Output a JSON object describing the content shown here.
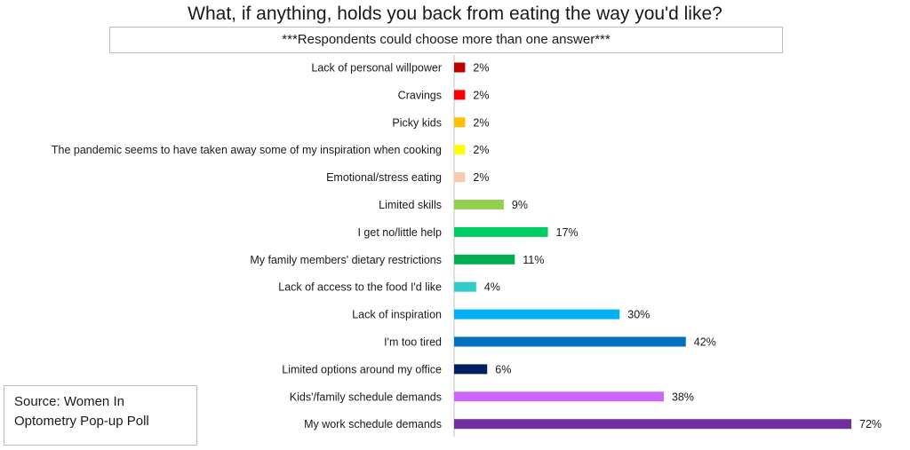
{
  "chart_data": {
    "type": "bar",
    "orientation": "horizontal",
    "title": "What, if anything, holds you back from eating the way you'd like?",
    "subtitle": "***Respondents could choose more than one answer***",
    "source": "Source: Women In\nOptometry Pop-up Poll",
    "categories": [
      "Lack of personal willpower",
      "Cravings",
      "Picky kids",
      "The pandemic seems to have taken away some of my inspiration when cooking",
      "Emotional/stress eating",
      "Limited skills",
      "I get no/little help",
      "My family members' dietary restrictions",
      "Lack of access to the food I'd like",
      "Lack of inspiration",
      "I'm too tired",
      "Limited options around my office",
      "Kids'/family schedule demands",
      "My work schedule demands"
    ],
    "values": [
      2,
      2,
      2,
      2,
      2,
      9,
      17,
      11,
      4,
      30,
      42,
      6,
      38,
      72
    ],
    "value_labels": [
      "2%",
      "2%",
      "2%",
      "2%",
      "2%",
      "9%",
      "17%",
      "11%",
      "4%",
      "30%",
      "42%",
      "6%",
      "38%",
      "72%"
    ],
    "colors": [
      "#c00000",
      "#ff0000",
      "#ffc000",
      "#ffff00",
      "#f8cbad",
      "#92d050",
      "#00cc66",
      "#00b050",
      "#33cccc",
      "#00b0f0",
      "#0070c0",
      "#002060",
      "#cc66ff",
      "#7030a0"
    ],
    "xlim": [
      0,
      72
    ],
    "grid": false,
    "legend": "none"
  }
}
